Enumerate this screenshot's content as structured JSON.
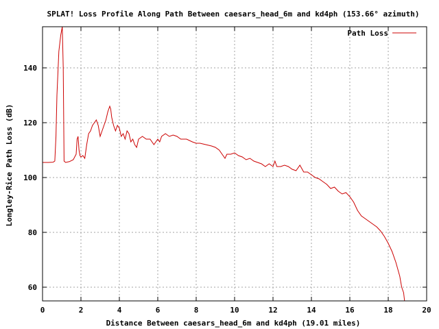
{
  "chart_data": {
    "type": "line",
    "title": "SPLAT! Loss Profile Along Path Between caesars_head_6m and kd4ph (153.66° azimuth)",
    "xlabel": "Distance Between caesars_head_6m and kd4ph (19.01 miles)",
    "ylabel": "Longley-Rice Path Loss (dB)",
    "xlim": [
      0,
      20
    ],
    "ylim": [
      55,
      155
    ],
    "xticks": [
      0,
      2,
      4,
      6,
      8,
      10,
      12,
      14,
      16,
      18,
      20
    ],
    "yticks": [
      60,
      80,
      100,
      120,
      140
    ],
    "grid": true,
    "legend_position": "top-right",
    "series": [
      {
        "name": "Path Loss",
        "color": "#cc0000",
        "x": [
          0,
          0.3,
          0.55,
          0.64,
          0.7,
          0.75,
          0.85,
          0.95,
          1.03,
          1.08,
          1.12,
          1.2,
          1.4,
          1.6,
          1.75,
          1.8,
          1.85,
          1.9,
          1.95,
          2.0,
          2.1,
          2.2,
          2.3,
          2.4,
          2.5,
          2.6,
          2.7,
          2.8,
          2.9,
          3.0,
          3.1,
          3.2,
          3.3,
          3.4,
          3.5,
          3.55,
          3.6,
          3.7,
          3.8,
          3.9,
          4.0,
          4.1,
          4.2,
          4.3,
          4.4,
          4.5,
          4.6,
          4.7,
          4.8,
          4.9,
          5.0,
          5.2,
          5.4,
          5.6,
          5.8,
          6.0,
          6.1,
          6.2,
          6.4,
          6.6,
          6.8,
          7.0,
          7.2,
          7.5,
          7.8,
          8.0,
          8.2,
          8.5,
          8.8,
          9.0,
          9.2,
          9.4,
          9.5,
          9.6,
          9.8,
          10.0,
          10.2,
          10.4,
          10.6,
          10.8,
          11.0,
          11.2,
          11.4,
          11.6,
          11.8,
          12.0,
          12.1,
          12.2,
          12.4,
          12.6,
          12.8,
          13.0,
          13.2,
          13.4,
          13.6,
          13.8,
          14.0,
          14.2,
          14.4,
          14.6,
          14.8,
          15.0,
          15.2,
          15.4,
          15.6,
          15.8,
          16.0,
          16.2,
          16.4,
          16.6,
          16.8,
          17.0,
          17.2,
          17.4,
          17.6,
          17.8,
          18.0,
          18.2,
          18.4,
          18.6,
          18.7,
          18.8,
          18.85
        ],
        "values": [
          105.5,
          105.5,
          105.6,
          106,
          115,
          130,
          146,
          152,
          155,
          140,
          106,
          105.5,
          105.8,
          106.5,
          108.5,
          114,
          115,
          110,
          108,
          107.5,
          108,
          107,
          112,
          116,
          117,
          119,
          120,
          121,
          119,
          115,
          117,
          119,
          121,
          124,
          126,
          125,
          122,
          119,
          117,
          119,
          118,
          115,
          116,
          114,
          117,
          116,
          113,
          114,
          112,
          111,
          114,
          115,
          114,
          114,
          112,
          114,
          113,
          115,
          116,
          115,
          115.5,
          115,
          114,
          114,
          113,
          112.5,
          112.5,
          112,
          111.5,
          111,
          110,
          108,
          107,
          108.5,
          108.5,
          109,
          108,
          107.5,
          106.5,
          107,
          106,
          105.5,
          105,
          104,
          105,
          104,
          106,
          104,
          104,
          104.5,
          104,
          103,
          102.5,
          104.5,
          102,
          102,
          101,
          100,
          99.5,
          98.5,
          97.5,
          96,
          96.5,
          95,
          94,
          94.5,
          93,
          91,
          88,
          86,
          85,
          84,
          83,
          82,
          80.5,
          78.5,
          76,
          73,
          69,
          64,
          60,
          58,
          55
        ]
      }
    ]
  }
}
